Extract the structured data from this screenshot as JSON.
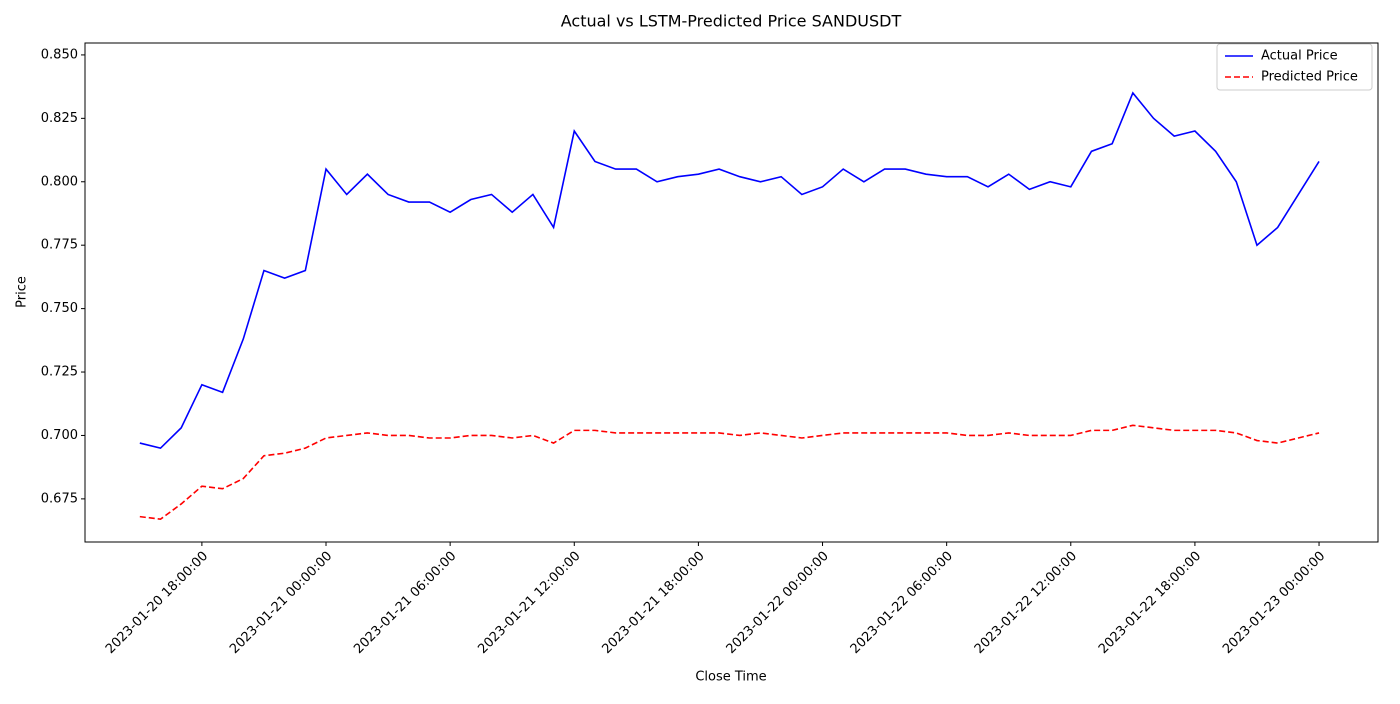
{
  "chart_data": {
    "type": "line",
    "title": "Actual vs LSTM-Predicted Price SANDUSDT",
    "x_label": "Close Time",
    "y_label": "Price",
    "x": [
      "2023-01-20 15:00:00",
      "2023-01-20 16:00:00",
      "2023-01-20 17:00:00",
      "2023-01-20 18:00:00",
      "2023-01-20 19:00:00",
      "2023-01-20 20:00:00",
      "2023-01-20 21:00:00",
      "2023-01-20 22:00:00",
      "2023-01-20 23:00:00",
      "2023-01-21 00:00:00",
      "2023-01-21 01:00:00",
      "2023-01-21 02:00:00",
      "2023-01-21 03:00:00",
      "2023-01-21 04:00:00",
      "2023-01-21 05:00:00",
      "2023-01-21 06:00:00",
      "2023-01-21 07:00:00",
      "2023-01-21 08:00:00",
      "2023-01-21 09:00:00",
      "2023-01-21 10:00:00",
      "2023-01-21 11:00:00",
      "2023-01-21 12:00:00",
      "2023-01-21 13:00:00",
      "2023-01-21 14:00:00",
      "2023-01-21 15:00:00",
      "2023-01-21 16:00:00",
      "2023-01-21 17:00:00",
      "2023-01-21 18:00:00",
      "2023-01-21 19:00:00",
      "2023-01-21 20:00:00",
      "2023-01-21 21:00:00",
      "2023-01-21 22:00:00",
      "2023-01-21 23:00:00",
      "2023-01-22 00:00:00",
      "2023-01-22 01:00:00",
      "2023-01-22 02:00:00",
      "2023-01-22 03:00:00",
      "2023-01-22 04:00:00",
      "2023-01-22 05:00:00",
      "2023-01-22 06:00:00",
      "2023-01-22 07:00:00",
      "2023-01-22 08:00:00",
      "2023-01-22 09:00:00",
      "2023-01-22 10:00:00",
      "2023-01-22 11:00:00",
      "2023-01-22 12:00:00",
      "2023-01-22 13:00:00",
      "2023-01-22 14:00:00",
      "2023-01-22 15:00:00",
      "2023-01-22 16:00:00",
      "2023-01-22 17:00:00",
      "2023-01-22 18:00:00",
      "2023-01-22 19:00:00",
      "2023-01-22 20:00:00",
      "2023-01-22 21:00:00",
      "2023-01-22 22:00:00",
      "2023-01-22 23:00:00",
      "2023-01-23 00:00:00"
    ],
    "series": [
      {
        "name": "Actual Price",
        "color": "#0000ff",
        "linestyle": "solid",
        "values": [
          0.697,
          0.695,
          0.703,
          0.72,
          0.717,
          0.738,
          0.765,
          0.762,
          0.765,
          0.805,
          0.795,
          0.803,
          0.795,
          0.792,
          0.792,
          0.788,
          0.793,
          0.795,
          0.788,
          0.795,
          0.782,
          0.82,
          0.808,
          0.805,
          0.805,
          0.8,
          0.802,
          0.803,
          0.805,
          0.802,
          0.8,
          0.802,
          0.795,
          0.798,
          0.805,
          0.8,
          0.805,
          0.805,
          0.803,
          0.802,
          0.802,
          0.798,
          0.803,
          0.797,
          0.8,
          0.798,
          0.812,
          0.815,
          0.835,
          0.825,
          0.818,
          0.82,
          0.812,
          0.8,
          0.775,
          0.782,
          0.795,
          0.808
        ]
      },
      {
        "name": "Predicted Price",
        "color": "#ff0000",
        "linestyle": "dashed",
        "values": [
          0.668,
          0.667,
          0.673,
          0.68,
          0.679,
          0.683,
          0.692,
          0.693,
          0.695,
          0.699,
          0.7,
          0.701,
          0.7,
          0.7,
          0.699,
          0.699,
          0.7,
          0.7,
          0.699,
          0.7,
          0.697,
          0.702,
          0.702,
          0.701,
          0.701,
          0.701,
          0.701,
          0.701,
          0.701,
          0.7,
          0.701,
          0.7,
          0.699,
          0.7,
          0.701,
          0.701,
          0.701,
          0.701,
          0.701,
          0.701,
          0.7,
          0.7,
          0.701,
          0.7,
          0.7,
          0.7,
          0.702,
          0.702,
          0.704,
          0.703,
          0.702,
          0.702,
          0.702,
          0.701,
          0.698,
          0.697,
          0.699,
          0.701
        ]
      }
    ],
    "xlim": [
      "2023-01-20 12:21:00",
      "2023-01-23 02:51:00"
    ],
    "xticks": [
      "2023-01-20 18:00:00",
      "2023-01-21 00:00:00",
      "2023-01-21 06:00:00",
      "2023-01-21 12:00:00",
      "2023-01-21 18:00:00",
      "2023-01-22 00:00:00",
      "2023-01-22 06:00:00",
      "2023-01-22 12:00:00",
      "2023-01-22 18:00:00",
      "2023-01-23 00:00:00"
    ],
    "ylim": [
      0.658,
      0.8547
    ],
    "yticks": [
      0.675,
      {
        "value": 0.7,
        "label": "0.700"
      },
      0.725,
      {
        "value": 0.75,
        "label": "0.750"
      },
      0.775,
      {
        "value": 0.8,
        "label": "0.800"
      },
      0.825,
      {
        "value": 0.85,
        "label": "0.850"
      }
    ],
    "grid": false,
    "legend": "upper right"
  }
}
